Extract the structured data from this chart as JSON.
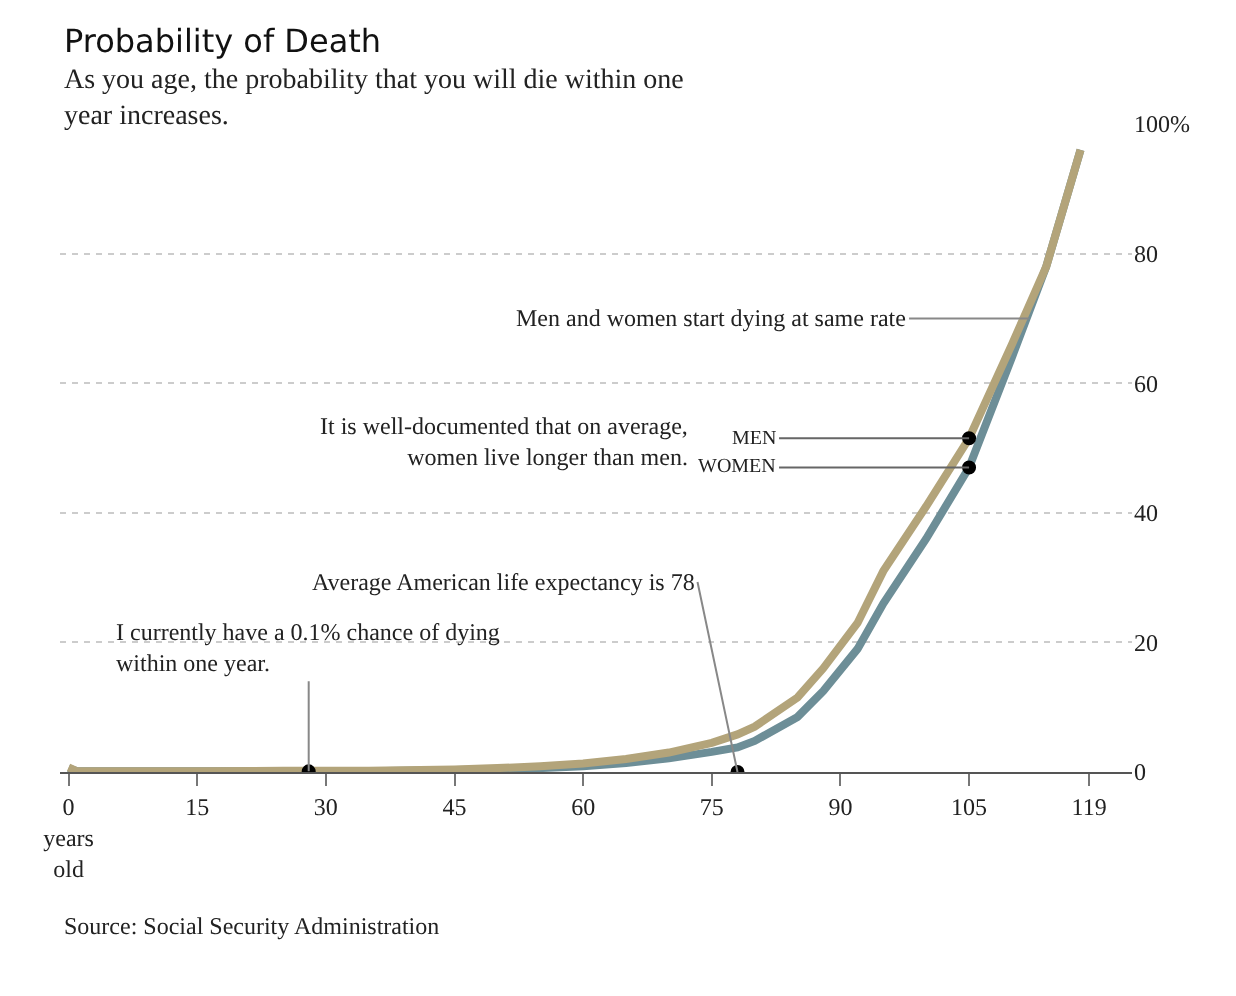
{
  "chart_data": {
    "type": "line",
    "title": "Probability of Death",
    "subtitle": "As you age, the probability that you will die within one\nyear increases.",
    "x": [
      0,
      1,
      5,
      15,
      25,
      28,
      35,
      45,
      50,
      55,
      60,
      65,
      70,
      75,
      78,
      80,
      85,
      88,
      92,
      95,
      100,
      105,
      110,
      114,
      118
    ],
    "series": [
      {
        "name": "MEN",
        "color": "#b3a47a",
        "values": [
          0.7,
          0.1,
          0.1,
          0.1,
          0.2,
          0.2,
          0.2,
          0.4,
          0.6,
          0.9,
          1.3,
          2.0,
          3.0,
          4.5,
          5.8,
          7,
          11.5,
          16,
          23,
          31,
          41,
          51.5,
          66,
          78,
          96
        ]
      },
      {
        "name": "WOMEN",
        "color": "#6d8e97",
        "values": [
          0.6,
          0.1,
          0.1,
          0.1,
          0.1,
          0.1,
          0.1,
          0.3,
          0.4,
          0.6,
          0.9,
          1.4,
          2.1,
          3.1,
          3.8,
          4.8,
          8.5,
          12.5,
          19,
          26,
          36,
          47,
          64,
          78,
          96
        ]
      }
    ],
    "xlim": [
      -1,
      124
    ],
    "ylim": [
      0,
      100
    ],
    "xticks": [
      {
        "value": 0,
        "label": "0\nyears\nold"
      },
      15,
      30,
      45,
      60,
      75,
      90,
      105,
      119
    ],
    "yticks": [
      0,
      20,
      40,
      60,
      80,
      {
        "value": 100,
        "label": "100%"
      }
    ],
    "grid": "y",
    "legend": false,
    "marker": "none",
    "line_style": "solid",
    "annotations": [
      {
        "text": "Men and women start dying at same rate",
        "x": 112,
        "y": 70
      },
      "It is well-documented that on average,\nwomen live longer than men.",
      {
        "text": "Average American life expectancy is 78",
        "x": 78,
        "y": 0
      },
      {
        "text": "I currently have a 0.1% chance of dying\nwithin one year.",
        "x": 28,
        "y": 0.1
      },
      "Source: Social Security Administration"
    ]
  }
}
